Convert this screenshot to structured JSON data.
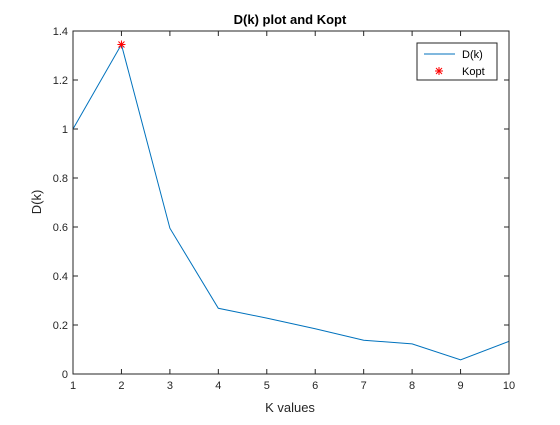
{
  "chart_data": {
    "type": "line",
    "title": "D(k) plot and Kopt",
    "xlabel": "K values",
    "ylabel": "D(k)",
    "xlim": [
      1,
      10
    ],
    "ylim": [
      0,
      1.4
    ],
    "xticks": [
      1,
      2,
      3,
      4,
      5,
      6,
      7,
      8,
      9,
      10
    ],
    "yticks": [
      0,
      0.2,
      0.4,
      0.6,
      0.8,
      1,
      1.2,
      1.4
    ],
    "xtick_labels": [
      "1",
      "2",
      "3",
      "4",
      "5",
      "6",
      "7",
      "8",
      "9",
      "10"
    ],
    "ytick_labels": [
      "0",
      "0.2",
      "0.4",
      "0.6",
      "0.8",
      "1",
      "1.2",
      "1.4"
    ],
    "grid": false,
    "legend_position": "top-right",
    "series": [
      {
        "name": "D(k)",
        "kind": "line",
        "color": "#0072BD",
        "x": [
          1,
          2,
          3,
          4,
          5,
          6,
          7,
          8,
          9,
          10
        ],
        "y": [
          1.0,
          1.345,
          0.595,
          0.268,
          0.228,
          0.185,
          0.138,
          0.123,
          0.058,
          0.133
        ]
      },
      {
        "name": "Kopt",
        "kind": "marker",
        "marker": "asterisk",
        "color": "#FF0000",
        "x": [
          2
        ],
        "y": [
          1.345
        ]
      }
    ]
  }
}
